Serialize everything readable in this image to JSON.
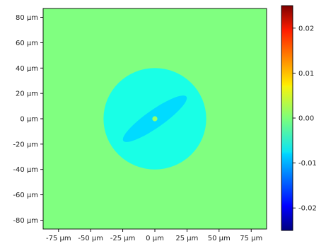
{
  "chart_data": {
    "type": "heatmap",
    "title": "",
    "xlabel": "",
    "ylabel": "",
    "x_unit": "µm",
    "y_unit": "µm",
    "xlim": [
      -87,
      87
    ],
    "ylim": [
      -87,
      87
    ],
    "x_ticks": [
      -75,
      -50,
      -25,
      0,
      25,
      50,
      75
    ],
    "x_tick_labels": [
      "-75 µm",
      "-50 µm",
      "-25 µm",
      "0 µm",
      "25 µm",
      "50 µm",
      "75 µm"
    ],
    "y_ticks": [
      80,
      60,
      40,
      20,
      0,
      -20,
      -40,
      -60,
      -80
    ],
    "y_tick_labels": [
      "80 µm",
      "60 µm",
      "40 µm",
      "20 µm",
      "0 µm",
      "-20 µm",
      "-40 µm",
      "-60 µm",
      "-80 µm"
    ],
    "grid": false,
    "background_value": 0.0,
    "regions": [
      {
        "shape": "circle",
        "center": [
          0,
          0
        ],
        "radius": 40,
        "value": -0.005
      },
      {
        "shape": "ellipse",
        "center": [
          0,
          0
        ],
        "rx": 30,
        "ry": 7,
        "rotation_deg": -35,
        "value": -0.008
      },
      {
        "shape": "circle",
        "center": [
          0,
          0
        ],
        "radius": 2,
        "value": 0.001
      }
    ],
    "colorbar": {
      "colormap": "jet",
      "vmin": -0.025,
      "vmax": 0.025,
      "ticks": [
        0.02,
        0.01,
        0.0,
        -0.01,
        -0.02
      ],
      "tick_labels": [
        "0.02",
        "0.01",
        "0.00",
        "-0.01",
        "-0.02"
      ]
    }
  }
}
